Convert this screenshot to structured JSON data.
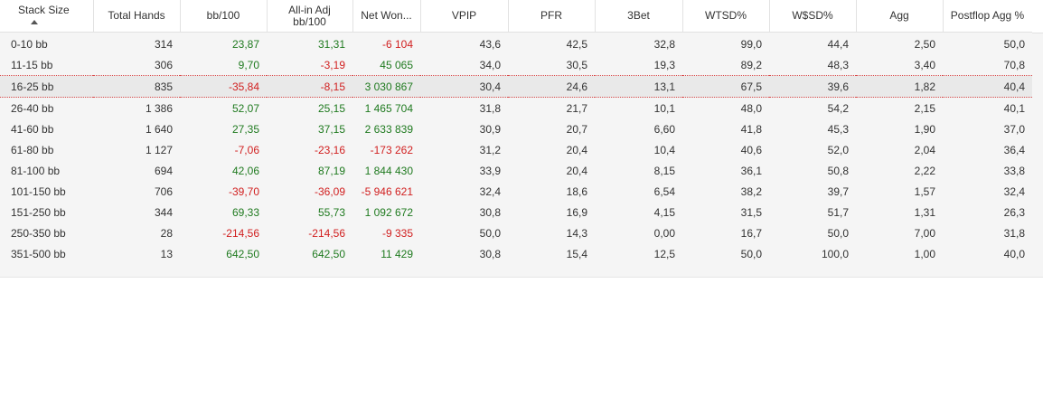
{
  "columns": [
    {
      "label": "Stack Size",
      "sorted": true
    },
    {
      "label": "Total Hands"
    },
    {
      "label": "bb/100"
    },
    {
      "label": "All-in Adj bb/100"
    },
    {
      "label": "Net Won..."
    },
    {
      "label": "VPIP"
    },
    {
      "label": "PFR"
    },
    {
      "label": "3Bet"
    },
    {
      "label": "WTSD%"
    },
    {
      "label": "W$SD%"
    },
    {
      "label": "Agg"
    },
    {
      "label": "Postflop Agg %"
    }
  ],
  "selected_row": 2,
  "rows": [
    {
      "stack": "0-10 bb",
      "hands": "314",
      "bb100": "23,87",
      "allin": "31,31",
      "net": "-6 104",
      "vpip": "43,6",
      "pfr": "42,5",
      "threebet": "32,8",
      "wtsd": "99,0",
      "wsd": "44,4",
      "agg": "2,50",
      "pagg": "50,0"
    },
    {
      "stack": "11-15 bb",
      "hands": "306",
      "bb100": "9,70",
      "allin": "-3,19",
      "net": "45 065",
      "vpip": "34,0",
      "pfr": "30,5",
      "threebet": "19,3",
      "wtsd": "89,2",
      "wsd": "48,3",
      "agg": "3,40",
      "pagg": "70,8"
    },
    {
      "stack": "16-25 bb",
      "hands": "835",
      "bb100": "-35,84",
      "allin": "-8,15",
      "net": "3 030 867",
      "vpip": "30,4",
      "pfr": "24,6",
      "threebet": "13,1",
      "wtsd": "67,5",
      "wsd": "39,6",
      "agg": "1,82",
      "pagg": "40,4"
    },
    {
      "stack": "26-40 bb",
      "hands": "1 386",
      "bb100": "52,07",
      "allin": "25,15",
      "net": "1 465 704",
      "vpip": "31,8",
      "pfr": "21,7",
      "threebet": "10,1",
      "wtsd": "48,0",
      "wsd": "54,2",
      "agg": "2,15",
      "pagg": "40,1"
    },
    {
      "stack": "41-60 bb",
      "hands": "1 640",
      "bb100": "27,35",
      "allin": "37,15",
      "net": "2 633 839",
      "vpip": "30,9",
      "pfr": "20,7",
      "threebet": "6,60",
      "wtsd": "41,8",
      "wsd": "45,3",
      "agg": "1,90",
      "pagg": "37,0"
    },
    {
      "stack": "61-80 bb",
      "hands": "1 127",
      "bb100": "-7,06",
      "allin": "-23,16",
      "net": "-173 262",
      "vpip": "31,2",
      "pfr": "20,4",
      "threebet": "10,4",
      "wtsd": "40,6",
      "wsd": "52,0",
      "agg": "2,04",
      "pagg": "36,4"
    },
    {
      "stack": "81-100 bb",
      "hands": "694",
      "bb100": "42,06",
      "allin": "87,19",
      "net": "1 844 430",
      "vpip": "33,9",
      "pfr": "20,4",
      "threebet": "8,15",
      "wtsd": "36,1",
      "wsd": "50,8",
      "agg": "2,22",
      "pagg": "33,8"
    },
    {
      "stack": "101-150 bb",
      "hands": "706",
      "bb100": "-39,70",
      "allin": "-36,09",
      "net": "-5 946 621",
      "vpip": "32,4",
      "pfr": "18,6",
      "threebet": "6,54",
      "wtsd": "38,2",
      "wsd": "39,7",
      "agg": "1,57",
      "pagg": "32,4"
    },
    {
      "stack": "151-250 bb",
      "hands": "344",
      "bb100": "69,33",
      "allin": "55,73",
      "net": "1 092 672",
      "vpip": "30,8",
      "pfr": "16,9",
      "threebet": "4,15",
      "wtsd": "31,5",
      "wsd": "51,7",
      "agg": "1,31",
      "pagg": "26,3"
    },
    {
      "stack": "250-350 bb",
      "hands": "28",
      "bb100": "-214,56",
      "allin": "-214,56",
      "net": "-9 335",
      "vpip": "50,0",
      "pfr": "14,3",
      "threebet": "0,00",
      "wtsd": "16,7",
      "wsd": "50,0",
      "agg": "7,00",
      "pagg": "31,8"
    },
    {
      "stack": "351-500 bb",
      "hands": "13",
      "bb100": "642,50",
      "allin": "642,50",
      "net": "11 429",
      "vpip": "30,8",
      "pfr": "15,4",
      "threebet": "12,5",
      "wtsd": "50,0",
      "wsd": "100,0",
      "agg": "1,00",
      "pagg": "40,0"
    }
  ],
  "colors": {
    "positive": "#1f7a1f",
    "negative": "#d11f1f",
    "selection_border": "#d84a4a"
  }
}
